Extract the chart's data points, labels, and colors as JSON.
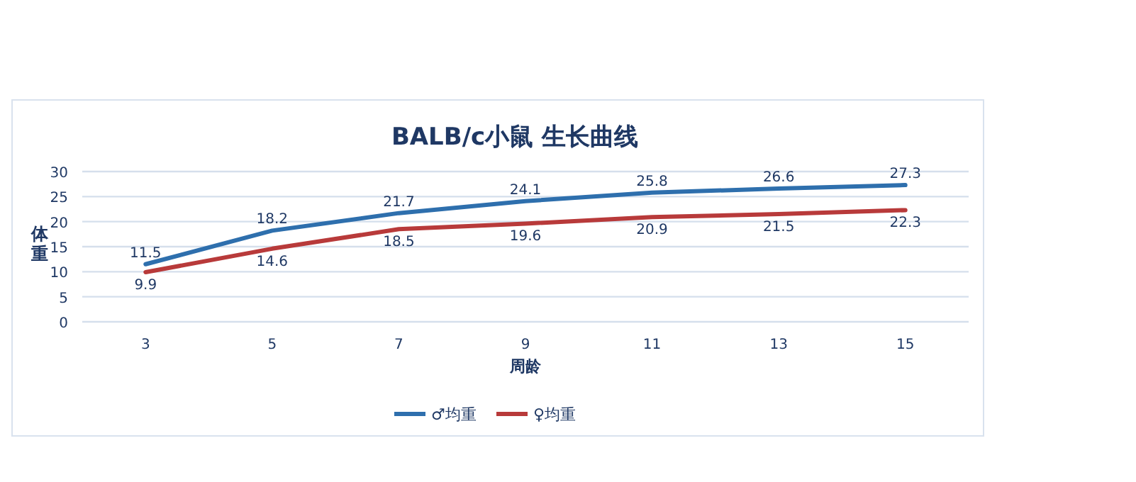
{
  "chart_data": {
    "type": "line",
    "title": "BALB/c小鼠 生长曲线",
    "xlabel": "周龄",
    "ylabel": "体重",
    "categories": [
      "3",
      "5",
      "7",
      "9",
      "11",
      "13",
      "15"
    ],
    "series": [
      {
        "name": "♂均重",
        "color": "#2e6fad",
        "values": [
          11.5,
          18.2,
          21.7,
          24.1,
          25.8,
          26.6,
          27.3
        ]
      },
      {
        "name": "♀均重",
        "color": "#b83a3a",
        "values": [
          9.9,
          14.6,
          18.5,
          19.6,
          20.9,
          21.5,
          22.3
        ]
      }
    ],
    "ylim": [
      0,
      30
    ],
    "yticks": [
      0,
      5,
      10,
      15,
      20,
      25,
      30
    ],
    "grid": "y",
    "legend": "bottom",
    "data_labels": true,
    "marker": "none",
    "line_style": "solid"
  }
}
